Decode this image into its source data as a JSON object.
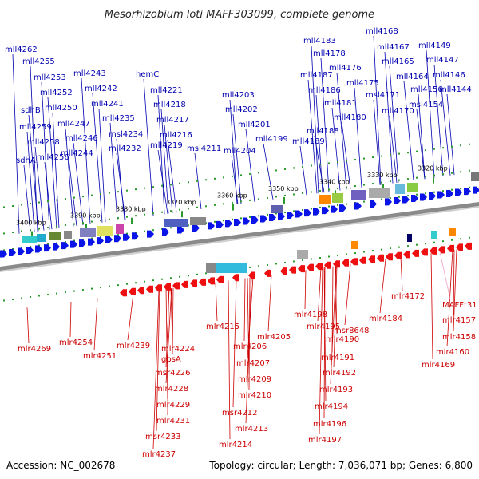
{
  "title": "Mesorhizobium loti MAFF303099, complete genome",
  "footer": {
    "accession": "Accession: NC_002678",
    "topology": "Topology: circular; Length: 7,036,071 bp; Genes: 6,800"
  },
  "colors": {
    "top_label": "#0000b0",
    "bottom_label": "#cc0000",
    "pink_label": "#f0a0c8",
    "forward_gene": "#0a14e6",
    "reverse_gene": "#ee1010",
    "backbone": "#888888",
    "tick_green": "#2a9a2a"
  },
  "kbp_ticks": [
    "3400 kbp",
    "3390 kbp",
    "3380 kbp",
    "3370 kbp",
    "3360 kbp",
    "3350 kbp",
    "3340 kbp",
    "3330 kbp",
    "3320 kbp"
  ],
  "top_genes": [
    "mll4262",
    "mll4255",
    "mll4253",
    "mll4252",
    "sdhB",
    "mll4250",
    "mll4259",
    "mll4247",
    "mll4258",
    "mll4246",
    "sdhA",
    "mll4256",
    "mll4244",
    "mll4243",
    "mll4242",
    "mll4241",
    "mll4235",
    "msl4234",
    "mll4232",
    "hemC",
    "mll4221",
    "mll4218",
    "mll4217",
    "mll4216",
    "mll4219",
    "msl4211",
    "mll4203",
    "mll4202",
    "mll4201",
    "mll4199",
    "mll4204",
    "mll4183",
    "mll4178",
    "mll4187",
    "mll4176",
    "mll4186",
    "mll4175",
    "mll4181",
    "mll4180",
    "mll4188",
    "mll4189",
    "mll4168",
    "mll4167",
    "mll4165",
    "mll4164",
    "msl4171",
    "mll4170",
    "mll4149",
    "mll4147",
    "mll4146",
    "mll4156",
    "mll4144",
    "msl4154"
  ],
  "bottom_genes": [
    "mlr4269",
    "mlr4254",
    "mlr4251",
    "mlr4239",
    "mlr4224",
    "gpsA",
    "msr4226",
    "mlr4228",
    "mlr4229",
    "mlr4231",
    "msr4233",
    "mlr4237",
    "mlr4215",
    "mlr4206",
    "mlr4205",
    "mlr4207",
    "mlr4209",
    "mlr4210",
    "msr4212",
    "mlr4213",
    "mlr4214",
    "mlr4198",
    "mlr4195",
    "msr8648",
    "mlr4190",
    "mlr4191",
    "mlr4192",
    "mlr4193",
    "mlr4194",
    "mlr4196",
    "mlr4197",
    "mlr4184",
    "mlr4172",
    "mlr4157",
    "mlr4158",
    "mlr4160",
    "mlr4169"
  ],
  "pink_genes": [
    "MAFFt31"
  ]
}
